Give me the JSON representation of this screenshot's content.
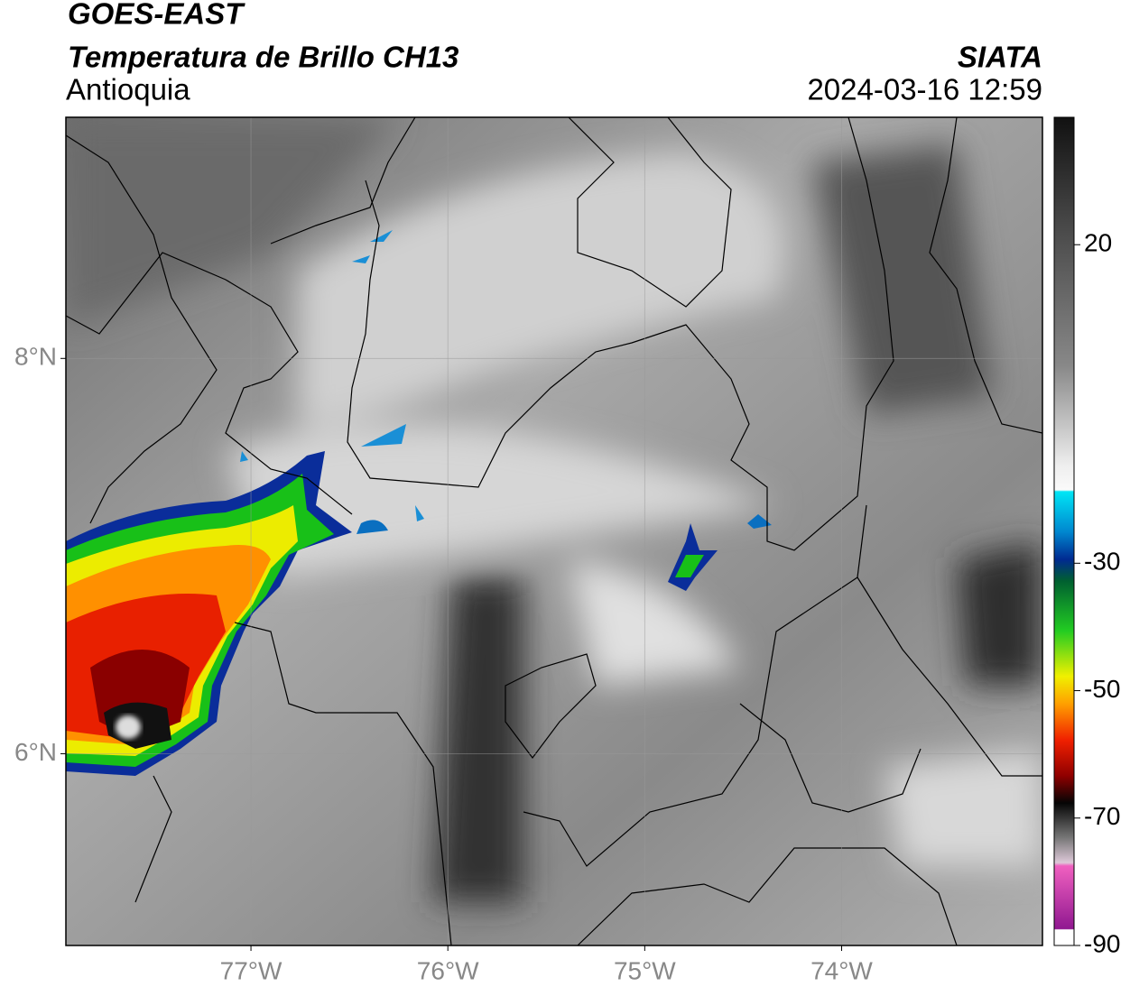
{
  "header": {
    "title": "GOES-EAST",
    "subtitle": "Temperatura de Brillo CH13",
    "region": "Antioquia",
    "source": "SIATA",
    "datetime": "2024-03-16 12:59"
  },
  "map": {
    "xlim": [
      -77.94,
      -72.98
    ],
    "ylim": [
      5.03,
      9.22
    ],
    "xticks": [
      {
        "value": -77,
        "label": "77°W"
      },
      {
        "value": -76,
        "label": "76°W"
      },
      {
        "value": -75,
        "label": "75°W"
      },
      {
        "value": -74,
        "label": "74°W"
      }
    ],
    "yticks": [
      {
        "value": 8,
        "label": "8°N"
      },
      {
        "value": 6,
        "label": "6°N"
      }
    ],
    "grid": true
  },
  "colorbar": {
    "lim": [
      -90,
      40
    ],
    "ticks": [
      20,
      -30,
      -50,
      -70,
      -90
    ]
  }
}
